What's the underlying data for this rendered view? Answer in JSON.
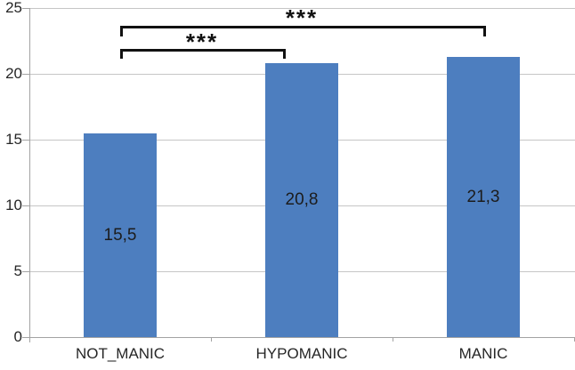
{
  "chart_data": {
    "type": "bar",
    "title": "",
    "xlabel": "",
    "ylabel": "",
    "categories": [
      "NOT_MANIC",
      "HYPOMANIC",
      "MANIC"
    ],
    "values": [
      15.5,
      20.8,
      21.3
    ],
    "value_labels": [
      "15,5",
      "20,8",
      "21,3"
    ],
    "ylim": [
      0,
      25
    ],
    "yticks": [
      0,
      5,
      10,
      15,
      20,
      25
    ],
    "ytick_labels": [
      "0",
      "5",
      "10",
      "15",
      "20",
      "25"
    ],
    "grid": "horizontal-gridlines-on",
    "legend": "none",
    "decimal_separator": ",",
    "annotations": [
      {
        "type": "significance-bracket",
        "from": "NOT_MANIC",
        "to": "MANIC",
        "label": "***"
      },
      {
        "type": "significance-bracket",
        "from": "NOT_MANIC",
        "to": "HYPOMANIC",
        "label": "***"
      }
    ],
    "colors": {
      "bar": "#4d7ebf",
      "gridline": "#c6c6c6",
      "axis": "#a3a3a3",
      "text": "#262626",
      "bracket": "#111111",
      "background": "#ffffff"
    }
  }
}
